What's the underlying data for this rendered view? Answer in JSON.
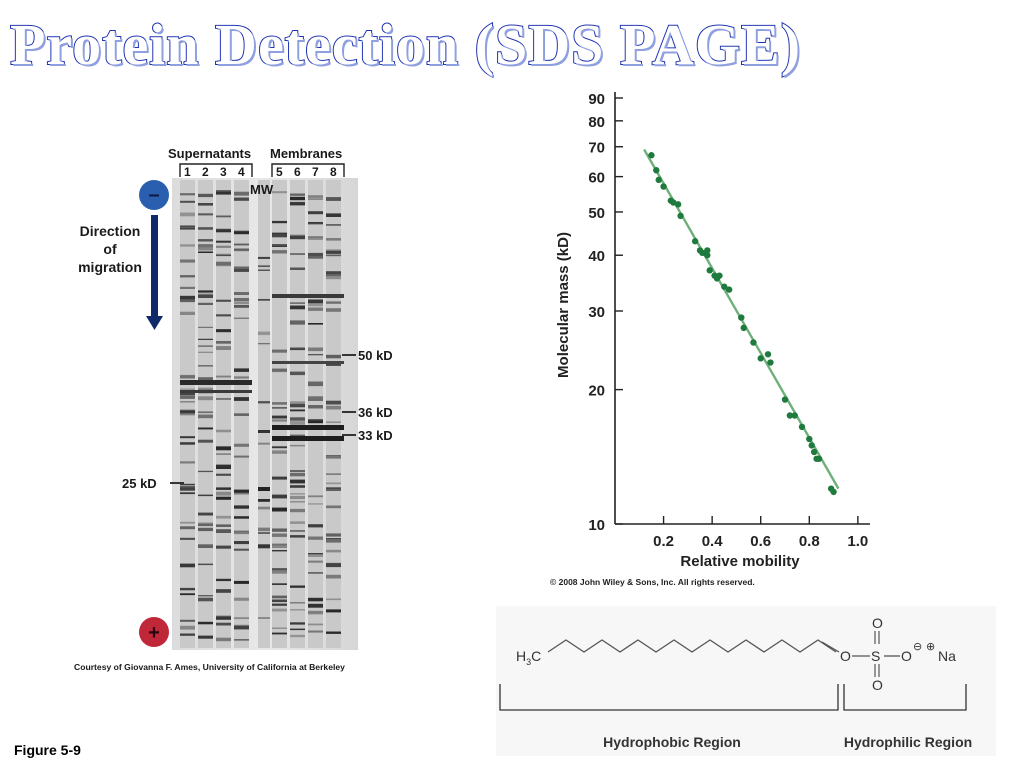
{
  "slide": {
    "title": "Protein Detection (SDS PAGE)",
    "figure_caption": "Figure 5-9"
  },
  "gel": {
    "supernatants_label": "Supernatants",
    "membranes_label": "Membranes",
    "lane_numbers_supernatants": [
      "1",
      "2",
      "3",
      "4"
    ],
    "lane_numbers_membranes": [
      "5",
      "6",
      "7",
      "8"
    ],
    "mw_label": "MW",
    "minus_sign": "–",
    "plus_sign": "+",
    "direction_lines": [
      "Direction",
      "of",
      "migration"
    ],
    "marker_50": "50 kD",
    "marker_36": "36 kD",
    "marker_33": "33 kD",
    "marker_25": "25 kD",
    "credit": "Courtesy of Giovanna F. Ames, University of California at Berkeley",
    "colors": {
      "minus_circle": "#2a5fb0",
      "plus_circle": "#c0283a",
      "arrow": "#0f2a6b"
    }
  },
  "chart_data": {
    "type": "scatter",
    "xlabel": "Relative mobility",
    "ylabel": "Molecular mass (kD)",
    "x_ticks": [
      "0.2",
      "0.4",
      "0.6",
      "0.8",
      "1.0"
    ],
    "y_ticks": [
      "10",
      "20",
      "30",
      "40",
      "50",
      "60",
      "70",
      "80",
      "90"
    ],
    "xlim": [
      0.0,
      1.05
    ],
    "ylim": [
      10,
      90
    ],
    "y_scale": "log",
    "copyright": "© 2008 John Wiley & Sons, Inc. All rights reserved.",
    "trendline": {
      "x1": 0.12,
      "y1": 69,
      "x2": 0.92,
      "y2": 12
    },
    "points": [
      [
        0.15,
        67
      ],
      [
        0.17,
        62
      ],
      [
        0.18,
        59
      ],
      [
        0.2,
        57
      ],
      [
        0.23,
        53
      ],
      [
        0.24,
        52.5
      ],
      [
        0.26,
        52
      ],
      [
        0.27,
        49
      ],
      [
        0.33,
        43
      ],
      [
        0.35,
        41
      ],
      [
        0.36,
        40.5
      ],
      [
        0.38,
        40
      ],
      [
        0.38,
        41
      ],
      [
        0.39,
        37
      ],
      [
        0.41,
        36
      ],
      [
        0.42,
        35.5
      ],
      [
        0.43,
        36
      ],
      [
        0.45,
        34
      ],
      [
        0.47,
        33.5
      ],
      [
        0.52,
        29
      ],
      [
        0.53,
        27.5
      ],
      [
        0.57,
        25.5
      ],
      [
        0.6,
        23.5
      ],
      [
        0.63,
        24
      ],
      [
        0.64,
        23
      ],
      [
        0.7,
        19
      ],
      [
        0.72,
        17.5
      ],
      [
        0.74,
        17.5
      ],
      [
        0.77,
        16.5
      ],
      [
        0.8,
        15.5
      ],
      [
        0.81,
        15
      ],
      [
        0.82,
        14.5
      ],
      [
        0.83,
        14
      ],
      [
        0.84,
        14
      ],
      [
        0.89,
        12
      ],
      [
        0.9,
        11.8
      ]
    ],
    "colors": {
      "point": "#1f7a3e",
      "line": "#6fb07a",
      "axis": "#222222"
    }
  },
  "sds": {
    "h3c_main": "H",
    "h3c_sub": "3",
    "h3c_tail": "C",
    "oxygen": "O",
    "sulfur": "S",
    "o_minus": "O",
    "minus_charge": "⊖",
    "plus_charge": "⊕",
    "sodium": "Na",
    "hydrophobic_label": "Hydrophobic Region",
    "hydrophilic_label": "Hydrophilic Region"
  }
}
